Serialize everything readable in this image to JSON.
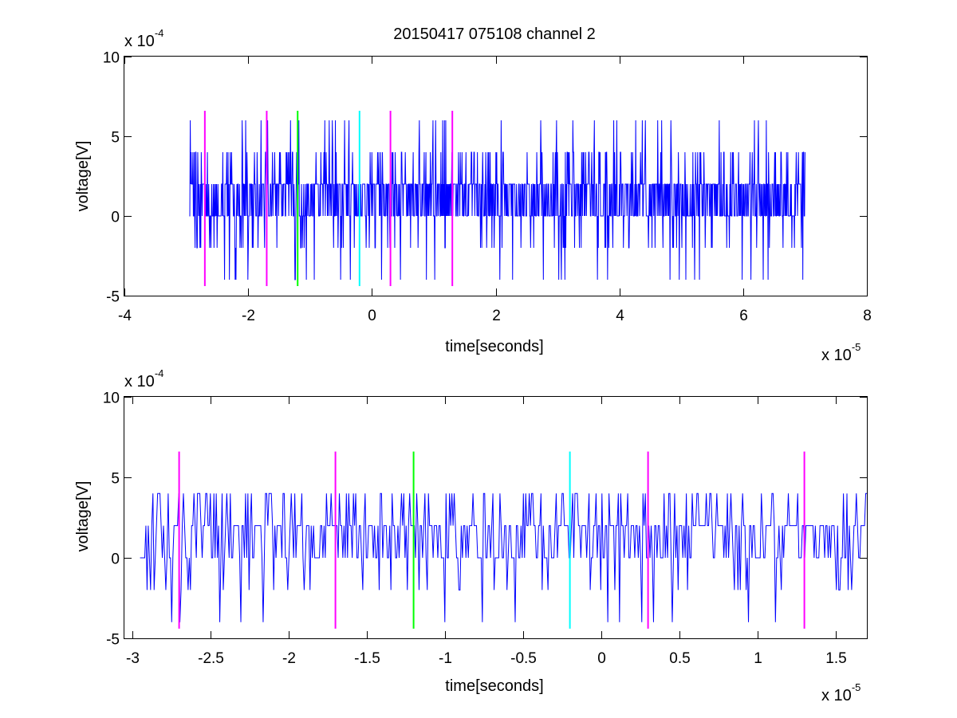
{
  "chart_data": [
    {
      "type": "line",
      "title": "20150417 075108 channel 2",
      "xlabel": "time[seconds]",
      "ylabel": "voltage[V]",
      "x_exponent": {
        "prefix": "x 10",
        "power": "-5"
      },
      "y_exponent": {
        "prefix": "x 10",
        "power": "-4"
      },
      "xlim": [
        -4,
        8
      ],
      "ylim": [
        -5,
        10
      ],
      "x_ticks": [
        -4,
        -2,
        0,
        2,
        4,
        6,
        8
      ],
      "x_tick_labels": [
        "-4",
        "-2",
        "0",
        "2",
        "4",
        "6",
        "8"
      ],
      "y_ticks": [
        -5,
        0,
        5,
        10
      ],
      "y_tick_labels": [
        "-5",
        "0",
        "5",
        "10"
      ],
      "grid": false,
      "series": [
        {
          "color": "#0000ff",
          "x_range": [
            -2.95,
            7.0
          ],
          "levels": [
            -4,
            -2,
            0,
            2,
            4,
            6
          ],
          "typical": [
            0,
            2
          ]
        }
      ],
      "markers": [
        {
          "x": -2.7,
          "color": "#ff00ff",
          "y_range": [
            -4.4,
            6.6
          ]
        },
        {
          "x": -1.7,
          "color": "#ff00ff",
          "y_range": [
            -4.4,
            6.6
          ]
        },
        {
          "x": -1.2,
          "color": "#00ff00",
          "y_range": [
            -4.4,
            6.6
          ]
        },
        {
          "x": -0.2,
          "color": "#00ffff",
          "y_range": [
            -4.4,
            6.6
          ]
        },
        {
          "x": 0.3,
          "color": "#ff00ff",
          "y_range": [
            -4.4,
            6.6
          ]
        },
        {
          "x": 1.3,
          "color": "#ff00ff",
          "y_range": [
            -4.4,
            6.6
          ]
        }
      ]
    },
    {
      "type": "line",
      "title": "",
      "xlabel": "time[seconds]",
      "ylabel": "voltage[V]",
      "x_exponent": {
        "prefix": "x 10",
        "power": "-5"
      },
      "y_exponent": {
        "prefix": "x 10",
        "power": "-4"
      },
      "xlim": [
        -3.05,
        1.7
      ],
      "ylim": [
        -5,
        10
      ],
      "x_ticks": [
        -3,
        -2.5,
        -2,
        -1.5,
        -1,
        -0.5,
        0,
        0.5,
        1,
        1.5
      ],
      "x_tick_labels": [
        "-3",
        "-2.5",
        "-2",
        "-1.5",
        "-1",
        "-0.5",
        "0",
        "0.5",
        "1",
        "1.5"
      ],
      "y_ticks": [
        -5,
        0,
        5,
        10
      ],
      "y_tick_labels": [
        "-5",
        "0",
        "5",
        "10"
      ],
      "grid": false,
      "series": [
        {
          "color": "#0000ff",
          "x_range": [
            -2.95,
            1.7
          ],
          "levels": [
            -4,
            -2,
            0,
            2,
            4
          ],
          "typical": [
            0,
            2
          ]
        }
      ],
      "markers": [
        {
          "x": -2.7,
          "color": "#ff00ff",
          "y_range": [
            -4.4,
            6.6
          ]
        },
        {
          "x": -1.7,
          "color": "#ff00ff",
          "y_range": [
            -4.4,
            6.6
          ]
        },
        {
          "x": -1.2,
          "color": "#00ff00",
          "y_range": [
            -4.4,
            6.6
          ]
        },
        {
          "x": -0.2,
          "color": "#00ffff",
          "y_range": [
            -4.4,
            6.6
          ]
        },
        {
          "x": 0.3,
          "color": "#ff00ff",
          "y_range": [
            -4.4,
            6.6
          ]
        },
        {
          "x": 1.3,
          "color": "#ff00ff",
          "y_range": [
            -4.4,
            6.6
          ]
        }
      ]
    }
  ]
}
